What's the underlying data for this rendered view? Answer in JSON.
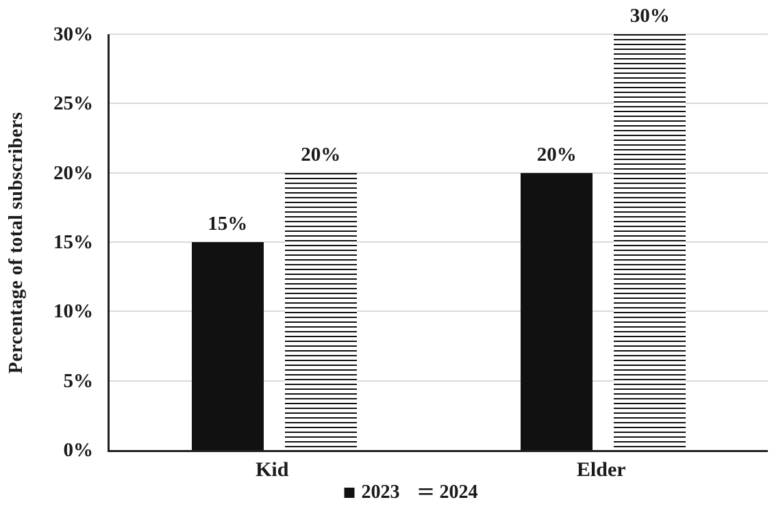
{
  "chart_data": {
    "type": "bar",
    "categories": [
      "Kid",
      "Elder"
    ],
    "series": [
      {
        "name": "2023",
        "style": "solid",
        "values": [
          15,
          20
        ],
        "labels": [
          "15%",
          "20%"
        ]
      },
      {
        "name": "2024",
        "style": "hstripes",
        "values": [
          20,
          30
        ],
        "labels": [
          "20%",
          "30%"
        ]
      }
    ],
    "title": "",
    "xlabel": "",
    "ylabel": "Percentage of total subscribers",
    "ylim": [
      0,
      30
    ],
    "ytick_step": 5,
    "yticks": [
      0,
      5,
      10,
      15,
      20,
      25,
      30
    ],
    "ytick_labels": [
      "0%",
      "5%",
      "10%",
      "15%",
      "20%",
      "25%",
      "30%"
    ],
    "grid": true,
    "legend_position": "bottom",
    "colors": {
      "bar_solid": "#111111",
      "stripe": "#111111",
      "gridline": "#d9d9d9",
      "axis": "#1f1f1f",
      "text": "#1a1a1a",
      "background": "#ffffff"
    }
  }
}
